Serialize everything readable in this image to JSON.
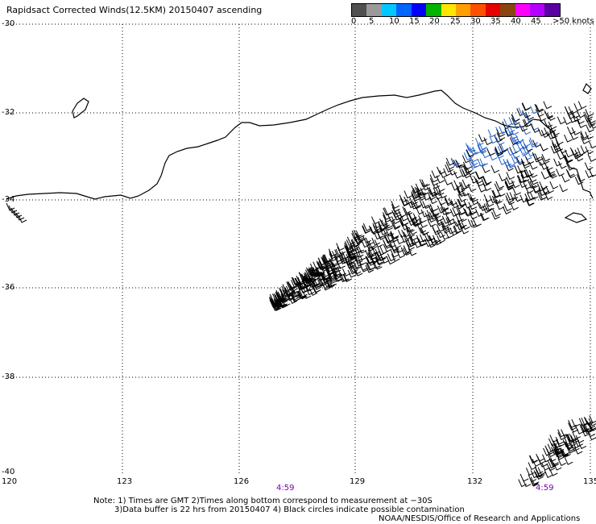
{
  "title": "Rapidsact Corrected Winds(12.5KM) 20150407 ascending",
  "legend": {
    "colors": [
      "#505050",
      "#9a9a9a",
      "#00c8ff",
      "#0064ff",
      "#0000ff",
      "#00b400",
      "#ffe600",
      "#ffa000",
      "#ff5000",
      "#e60000",
      "#8b4513",
      "#ff00ff",
      "#b400ff",
      "#5a00a0"
    ],
    "labels": [
      "0",
      "5",
      "10",
      "15",
      "20",
      "25",
      "30",
      "35",
      "40",
      "45",
      ">50 knots"
    ]
  },
  "axes": {
    "lat_labels": [
      "-30",
      "-32",
      "-34",
      "-36",
      "-38",
      "-40"
    ],
    "lon_labels": [
      "120",
      "123",
      "126",
      "129",
      "132",
      "135"
    ]
  },
  "time_labels": [
    "4:59",
    "4:59"
  ],
  "notes": {
    "line1": "Note: 1) Times are GMT 2)Times along bottom correspond to measurement at −30S",
    "line2": "3)Data buffer is 22 hrs from 20150407 4) Black circles indicate possible contamination",
    "line3": "NOAA/NESDIS/Office of Research and Applications"
  },
  "map": {
    "coastline_color": "#000000",
    "barb_color": "#000000",
    "barb_highlight_color": "#2060d0"
  }
}
